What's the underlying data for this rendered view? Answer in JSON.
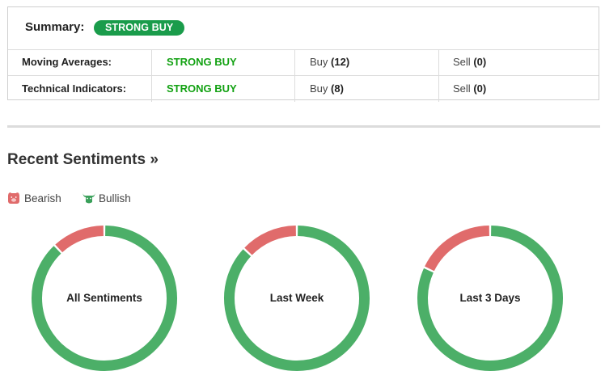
{
  "summary": {
    "label": "Summary:",
    "badge": "STRONG BUY"
  },
  "rows": [
    {
      "name": "Moving Averages:",
      "signal": "STRONG BUY",
      "buy_label": "Buy",
      "buy_count": "(12)",
      "sell_label": "Sell",
      "sell_count": "(0)"
    },
    {
      "name": "Technical Indicators:",
      "signal": "STRONG BUY",
      "buy_label": "Buy",
      "buy_count": "(8)",
      "sell_label": "Sell",
      "sell_count": "(0)"
    }
  ],
  "sentiments": {
    "title": "Recent Sentiments »",
    "legend": {
      "bearish": "Bearish",
      "bullish": "Bullish"
    },
    "colors": {
      "bearish": "#e06b6b",
      "bullish": "#4caf68"
    },
    "charts": [
      {
        "label": "All Sentiments",
        "bearish_pct": 12,
        "bullish_pct": 88
      },
      {
        "label": "Last Week",
        "bearish_pct": 13,
        "bullish_pct": 87
      },
      {
        "label": "Last 3 Days",
        "bearish_pct": 18,
        "bullish_pct": 82
      }
    ]
  }
}
